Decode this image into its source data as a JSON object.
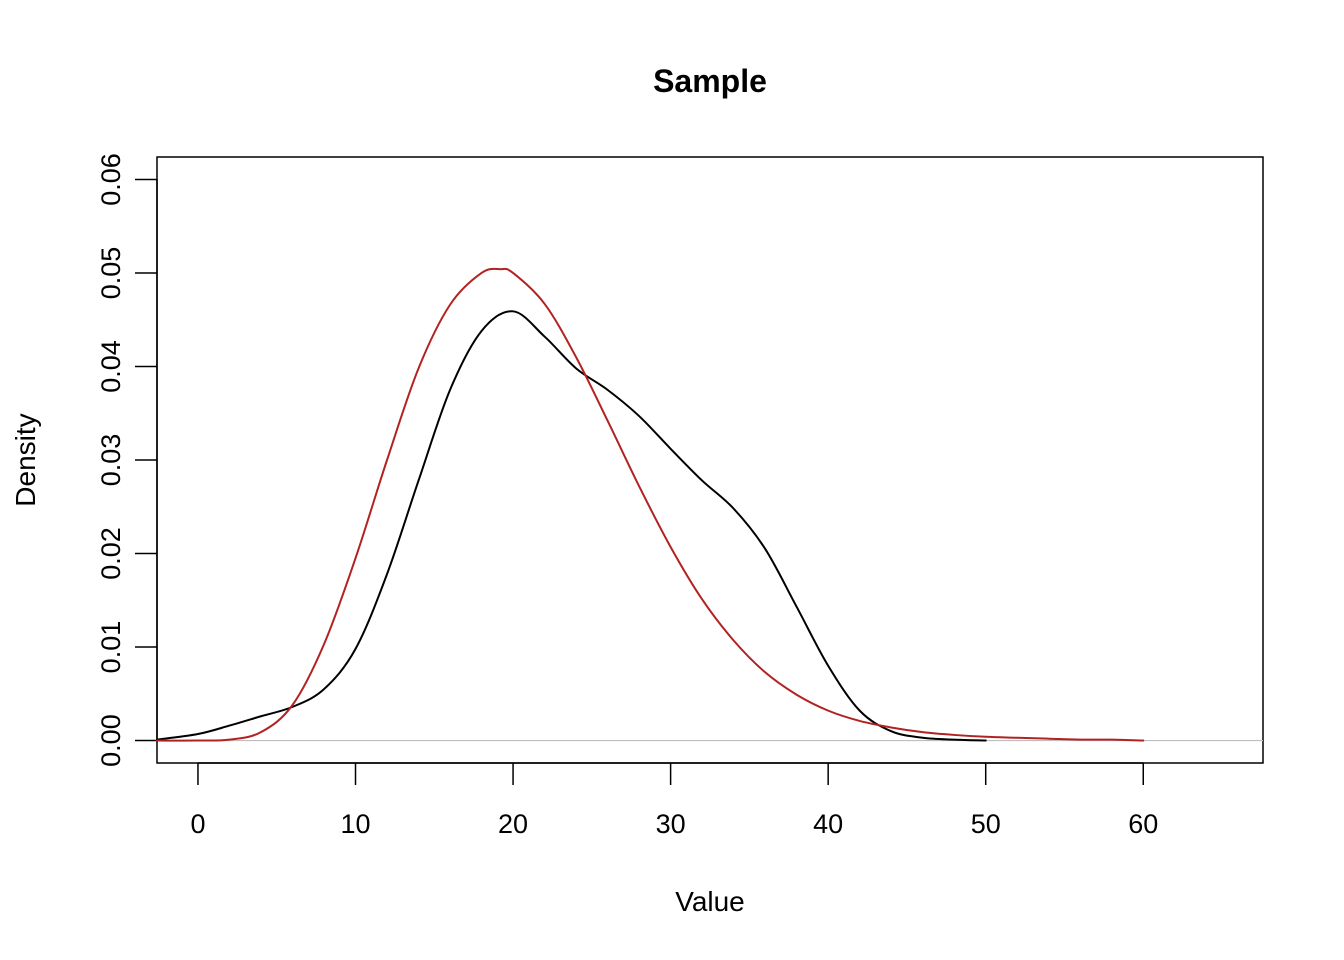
{
  "chart_data": {
    "type": "line",
    "title": "Sample",
    "xlabel": "Value",
    "ylabel": "Density",
    "xlim": [
      -2.6,
      67.6
    ],
    "ylim": [
      -0.0024,
      0.0624
    ],
    "x_ticks": [
      0,
      10,
      20,
      30,
      40,
      50,
      60
    ],
    "x_tick_labels": [
      "0",
      "10",
      "20",
      "30",
      "40",
      "50",
      "60"
    ],
    "y_ticks": [
      0,
      0.01,
      0.02,
      0.03,
      0.04,
      0.05,
      0.06
    ],
    "y_tick_labels": [
      "0.00",
      "0.01",
      "0.02",
      "0.03",
      "0.04",
      "0.05",
      "0.06"
    ],
    "grid": false,
    "legend": "none",
    "baseline": {
      "y": 0,
      "color": "#BEBEBE"
    },
    "series": [
      {
        "color": "#000000",
        "x": [
          -2.6,
          0,
          2,
          4,
          6,
          8,
          10,
          12,
          14,
          16,
          18,
          20,
          22,
          24,
          26,
          28,
          30,
          32,
          34,
          36,
          38,
          40,
          42,
          44,
          46,
          48,
          50
        ],
        "y": [
          0.0001,
          0.0007,
          0.0016,
          0.0026,
          0.0036,
          0.0055,
          0.0098,
          0.0178,
          0.0278,
          0.0375,
          0.0438,
          0.0459,
          0.0432,
          0.0398,
          0.0375,
          0.0347,
          0.0312,
          0.0278,
          0.0248,
          0.0205,
          0.0143,
          0.008,
          0.0032,
          0.001,
          0.0003,
          0.0001,
          0.0
        ]
      },
      {
        "color": "#B22222",
        "x": [
          -2.6,
          0,
          2,
          4,
          6,
          8,
          10,
          12,
          14,
          16,
          18,
          19.2,
          20,
          22,
          24,
          26,
          28,
          30,
          32,
          34,
          36,
          38,
          40,
          42,
          44,
          46,
          48,
          50,
          52,
          54,
          56,
          58,
          60
        ],
        "y": [
          0.0,
          0.0,
          0.0001,
          0.0009,
          0.0038,
          0.0103,
          0.0195,
          0.03,
          0.0398,
          0.0466,
          0.05,
          0.0504,
          0.05,
          0.0467,
          0.041,
          0.0342,
          0.0272,
          0.0207,
          0.0151,
          0.0107,
          0.0073,
          0.0049,
          0.0032,
          0.0021,
          0.0014,
          0.0009,
          0.0006,
          0.0004,
          0.0003,
          0.0002,
          0.0001,
          0.0001,
          0.0
        ]
      }
    ]
  }
}
